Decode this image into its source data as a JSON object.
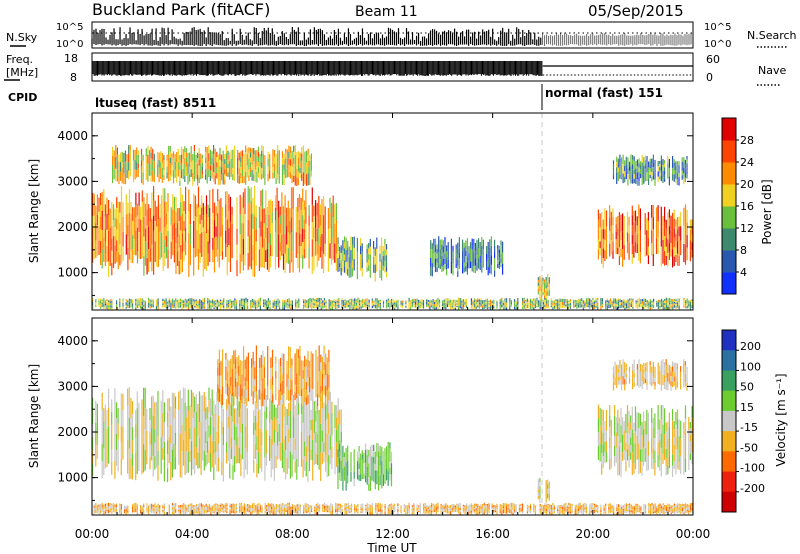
{
  "header": {
    "title": "Buckland Park (fitACF)",
    "beam": "Beam 11",
    "date": "05/Sep/2015"
  },
  "summary": {
    "nsky_label": "N.Sky",
    "nsearch_label": "N.Search",
    "noise_ticks": [
      "10^5",
      "10^0"
    ],
    "freq_label_line1": "Freq.",
    "freq_label_line2": "[MHz]",
    "freq_ticks": [
      "18",
      "8"
    ],
    "nave_label": "Nave",
    "nave_ticks": [
      "60",
      "0"
    ],
    "cpid_label": "CPID",
    "cpid_segments": [
      {
        "name": "ltuseq (fast) 8511",
        "start_hour": 0.0,
        "end_hour": 18.0
      },
      {
        "name": "normal (fast) 151",
        "start_hour": 18.0,
        "end_hour": 24.0
      }
    ]
  },
  "xaxis": {
    "label": "Time UT",
    "ticks": [
      "00:00",
      "04:00",
      "08:00",
      "12:00",
      "16:00",
      "20:00",
      "00:00"
    ],
    "range_hours": [
      0,
      24
    ]
  },
  "power_panel": {
    "ylabel": "Slant Range [km]",
    "yticks": [
      "1000",
      "2000",
      "3000",
      "4000"
    ],
    "colorbar_label": "Power [dB]",
    "colorbar_ticks": [
      "4",
      "8",
      "12",
      "16",
      "20",
      "24",
      "28"
    ],
    "colorbar_colors": [
      "#1030ff",
      "#2a58b0",
      "#3e8a6e",
      "#6abf3c",
      "#f0d020",
      "#ff8c00",
      "#ff4400",
      "#e00000"
    ]
  },
  "velocity_panel": {
    "ylabel": "Slant Range [km]",
    "yticks": [
      "1000",
      "2000",
      "3000",
      "4000"
    ],
    "colorbar_label": "Velocity [m s⁻¹]",
    "colorbar_ticks": [
      "200",
      "100",
      "50",
      "15",
      "-15",
      "-50",
      "-100",
      "-200"
    ],
    "colorbar_colors": [
      "#2030c0",
      "#2a70a0",
      "#3aa060",
      "#6ccc30",
      "#c8c8c8",
      "#f0b020",
      "#ff6a00",
      "#ee2010",
      "#cc0000"
    ]
  },
  "chart_data": [
    {
      "type": "heatmap",
      "title": "Power",
      "x_unit": "hours UT",
      "y_unit": "km",
      "ylim": [
        180,
        4500
      ],
      "xlim": [
        0,
        24
      ],
      "value_unit": "dB",
      "regions": [
        {
          "x": [
            0.0,
            9.8
          ],
          "y": [
            900,
            2900
          ],
          "value_mean": 22
        },
        {
          "x": [
            0.8,
            8.8
          ],
          "y": [
            2900,
            3800
          ],
          "value_mean": 18
        },
        {
          "x": [
            9.8,
            11.8
          ],
          "y": [
            800,
            1800
          ],
          "value_mean": 12
        },
        {
          "x": [
            13.5,
            16.5
          ],
          "y": [
            900,
            1800
          ],
          "value_mean": 8
        },
        {
          "x": [
            17.8,
            18.3
          ],
          "y": [
            400,
            1000
          ],
          "value_mean": 16
        },
        {
          "x": [
            20.2,
            24.0
          ],
          "y": [
            1100,
            2500
          ],
          "value_mean": 24
        },
        {
          "x": [
            20.8,
            23.8
          ],
          "y": [
            2900,
            3600
          ],
          "value_mean": 10
        },
        {
          "x": [
            0.0,
            24.0
          ],
          "y": [
            180,
            450
          ],
          "value_mean": 14
        }
      ]
    },
    {
      "type": "heatmap",
      "title": "Velocity",
      "x_unit": "hours UT",
      "y_unit": "km",
      "ylim": [
        180,
        4500
      ],
      "xlim": [
        0,
        24
      ],
      "value_unit": "m s-1",
      "regions": [
        {
          "x": [
            0.0,
            10.0
          ],
          "y": [
            900,
            3000
          ],
          "value_mean": 0
        },
        {
          "x": [
            5.0,
            9.5
          ],
          "y": [
            2500,
            3900
          ],
          "value_mean": -40
        },
        {
          "x": [
            9.8,
            12.0
          ],
          "y": [
            700,
            1800
          ],
          "value_mean": 40
        },
        {
          "x": [
            17.8,
            18.3
          ],
          "y": [
            400,
            1000
          ],
          "value_mean": 0
        },
        {
          "x": [
            20.2,
            24.0
          ],
          "y": [
            1000,
            2600
          ],
          "value_mean": 0
        },
        {
          "x": [
            20.8,
            23.8
          ],
          "y": [
            2900,
            3600
          ],
          "value_mean": -20
        },
        {
          "x": [
            0.0,
            24.0
          ],
          "y": [
            180,
            450
          ],
          "value_mean": -30
        }
      ]
    }
  ]
}
